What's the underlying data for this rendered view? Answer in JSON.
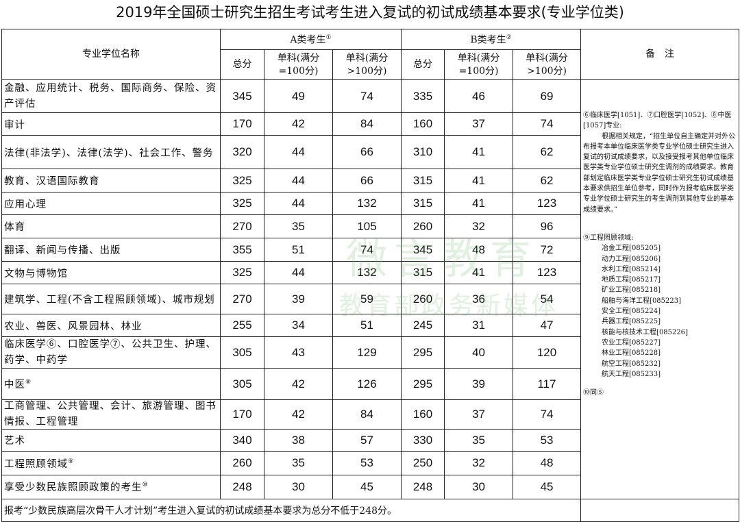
{
  "title": "2019年全国硕士研究生招生考试考生进入复试的初试成绩基本要求(专业学位类)",
  "header": {
    "name_col": "专业学位名称",
    "group_a": "A类考生",
    "group_a_note": "①",
    "group_b": "B类考生",
    "group_b_note": "②",
    "remarks": "备　注",
    "total": "总分",
    "single_100": "单科(满分=100分)",
    "single_gt100": "单科(满分>100分)"
  },
  "rows": [
    {
      "name": "金融、应用统计、税务、国际商务、保险、资产评估",
      "sup": "",
      "a": [
        "345",
        "49",
        "74"
      ],
      "b": [
        "335",
        "46",
        "69"
      ]
    },
    {
      "name": "审计",
      "sup": "",
      "a": [
        "170",
        "42",
        "84"
      ],
      "b": [
        "160",
        "37",
        "74"
      ]
    },
    {
      "name": "法律(非法学)、法律(法学)、社会工作、警务",
      "sup": "",
      "a": [
        "320",
        "44",
        "66"
      ],
      "b": [
        "310",
        "41",
        "62"
      ]
    },
    {
      "name": "教育、汉语国际教育",
      "sup": "",
      "a": [
        "325",
        "44",
        "66"
      ],
      "b": [
        "315",
        "41",
        "62"
      ]
    },
    {
      "name": "应用心理",
      "sup": "",
      "a": [
        "325",
        "44",
        "132"
      ],
      "b": [
        "315",
        "41",
        "123"
      ]
    },
    {
      "name": "体育",
      "sup": "",
      "a": [
        "270",
        "35",
        "105"
      ],
      "b": [
        "260",
        "32",
        "96"
      ]
    },
    {
      "name": "翻译、新闻与传播、出版",
      "sup": "",
      "a": [
        "355",
        "51",
        "74"
      ],
      "b": [
        "345",
        "48",
        "72"
      ]
    },
    {
      "name": "文物与博物馆",
      "sup": "",
      "a": [
        "325",
        "44",
        "132"
      ],
      "b": [
        "315",
        "41",
        "123"
      ]
    },
    {
      "name": "建筑学、工程(不含工程照顾领域)、城市规划",
      "sup": "",
      "a": [
        "270",
        "39",
        "59"
      ],
      "b": [
        "260",
        "36",
        "54"
      ]
    },
    {
      "name": "农业、兽医、风景园林、林业",
      "sup": "",
      "a": [
        "255",
        "34",
        "51"
      ],
      "b": [
        "245",
        "31",
        "47"
      ]
    },
    {
      "name": "临床医学⑥、口腔医学⑦、公共卫生、护理、药学、中药学",
      "sup": "",
      "a": [
        "305",
        "43",
        "129"
      ],
      "b": [
        "295",
        "40",
        "120"
      ]
    },
    {
      "name": "中医",
      "sup": "⑧",
      "a": [
        "305",
        "42",
        "126"
      ],
      "b": [
        "295",
        "39",
        "117"
      ]
    },
    {
      "name": "工商管理、公共管理、会计、旅游管理、图书情报、工程管理",
      "sup": "",
      "a": [
        "170",
        "42",
        "84"
      ],
      "b": [
        "160",
        "37",
        "74"
      ]
    },
    {
      "name": "艺术",
      "sup": "",
      "a": [
        "340",
        "38",
        "57"
      ],
      "b": [
        "330",
        "35",
        "53"
      ]
    },
    {
      "name": "工程照顾领域",
      "sup": "⑨",
      "a": [
        "260",
        "35",
        "53"
      ],
      "b": [
        "250",
        "32",
        "48"
      ]
    },
    {
      "name": "享受少数民族照顾政策的考生",
      "sup": "⑩",
      "a": [
        "248",
        "30",
        "45"
      ],
      "b": [
        "248",
        "30",
        "45"
      ]
    }
  ],
  "remarks": {
    "note1_head": "⑥临床医学[1051]、⑦口腔医学[1052]、⑧中医[1057]专业:",
    "note1_body": "根据相关规定，“招生单位自主确定并对外公布报考本单位临床医学类专业学位硕士研究生进入复试的初试成绩要求，以及接受报考其他单位临床医学类专业学位硕士研究生调剂的成绩要求。教育部划定临床医学类专业学位硕士研究生初试成绩基本要求供招生单位参考，同时作为报考临床医学类专业学位硕士研究生的考生调剂到其他专业的基本成绩要求。”",
    "note2_head": "⑨工程照顾领域:",
    "note2_items": [
      "冶金工程[085205]",
      "动力工程[085206]",
      "水利工程[085214]",
      "地质工程[085217]",
      "矿业工程[085218]",
      "船舶与海洋工程[085223]",
      "安全工程[085224]",
      "兵器工程[085225]",
      "核能与核技术工程[085226]",
      "农业工程[085227]",
      "林业工程[085228]",
      "航空工程[085232]",
      "航天工程[085233]"
    ],
    "note3": "⑩同⑤"
  },
  "footer": "报考“少数民族高层次骨干人才计划”考生进入复试的初试成绩基本要求为总分不低于248分。",
  "watermark": {
    "line1": "微言教育",
    "line2": "教育部政务新媒体"
  }
}
